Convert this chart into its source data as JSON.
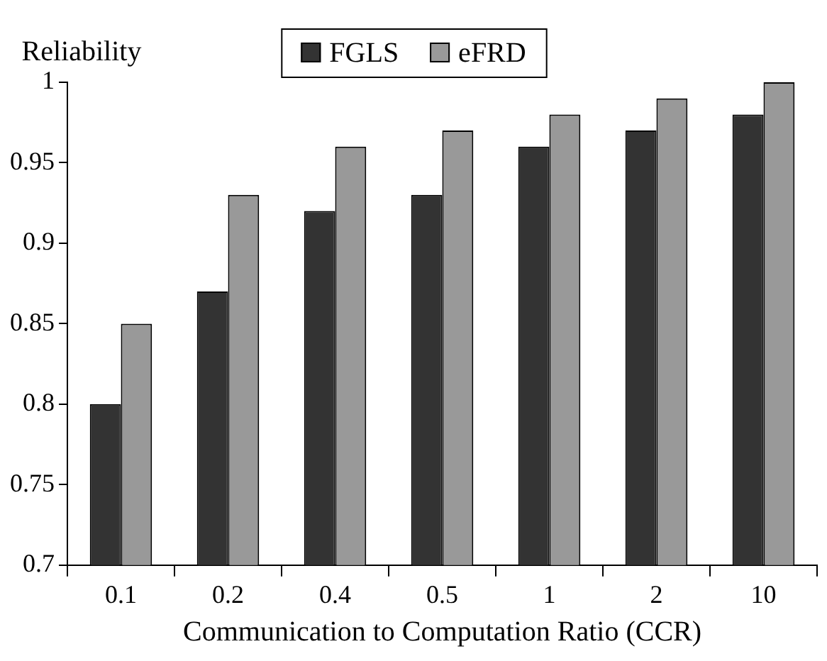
{
  "chart_data": {
    "type": "bar",
    "ylabel": "Reliability",
    "xlabel": "Communication to Computation Ratio (CCR)",
    "categories": [
      "0.1",
      "0.2",
      "0.4",
      "0.5",
      "1",
      "2",
      "10"
    ],
    "series": [
      {
        "name": "FGLS",
        "color": "#333333",
        "values": [
          0.8,
          0.87,
          0.92,
          0.93,
          0.96,
          0.97,
          0.98
        ]
      },
      {
        "name": "eFRD",
        "color": "#999999",
        "values": [
          0.85,
          0.93,
          0.96,
          0.97,
          0.98,
          0.99,
          1.0
        ]
      }
    ],
    "ylim": [
      0.7,
      1
    ],
    "yticks": [
      0.7,
      0.75,
      0.8,
      0.85,
      0.9,
      0.95,
      1
    ],
    "grid": false,
    "legend": "top"
  }
}
